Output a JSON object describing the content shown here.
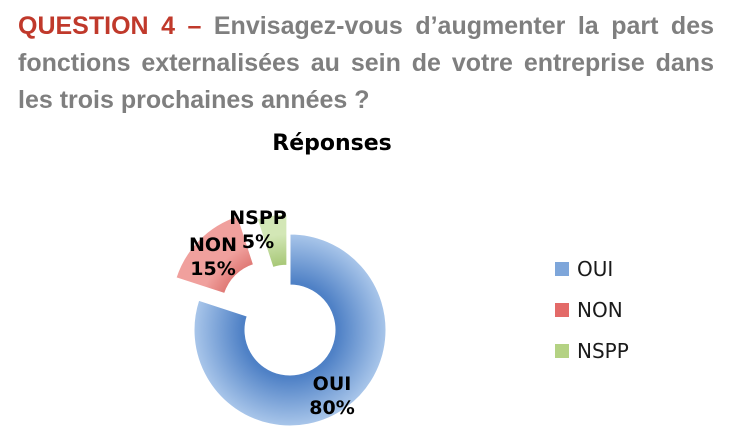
{
  "question": {
    "number": "QUESTION 4 –",
    "text": "Envisagez-vous d’augmenter la part des fonctions externalisées au sein de votre entreprise dans les trois prochaines années ?"
  },
  "chart_data": {
    "type": "pie",
    "variant": "exploded doughnut",
    "title": "Réponses",
    "categories": [
      "OUI",
      "NON",
      "NSPP"
    ],
    "values": [
      80,
      15,
      5
    ],
    "data_labels": [
      "80%",
      "15%",
      "5%"
    ],
    "colors": [
      "#7ea6da",
      "#e36a68",
      "#b4d283"
    ],
    "legend_position": "right"
  }
}
